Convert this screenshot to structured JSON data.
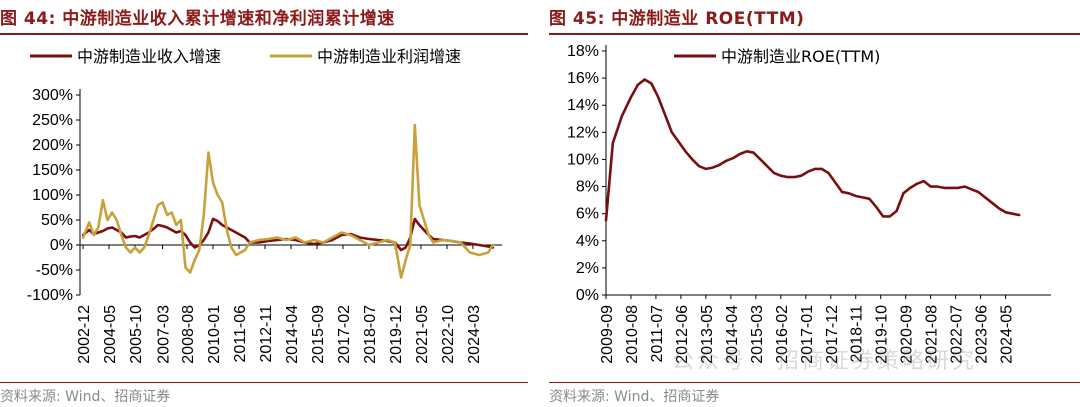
{
  "left_panel": {
    "title": "图 44:  中游制造业收入累计增速和净利润累计增速",
    "source": "资料来源:  Wind、招商证券"
  },
  "right_panel": {
    "title": "图 45:  中游制造业 ROE(TTM)",
    "source": "资料来源:  Wind、招商证券"
  },
  "watermark": "公众号 · 招商证券策略研究",
  "colors": {
    "title": "#8B1A1A",
    "series_dark": "#7B0E0E",
    "series_gold": "#C8A13A"
  },
  "chart_data": [
    {
      "type": "line",
      "title": "中游制造业收入累计增速和净利润累计增速",
      "ylim": [
        -100,
        300
      ],
      "yticks": [
        -100,
        -50,
        0,
        50,
        100,
        150,
        200,
        250,
        300
      ],
      "ytick_labels": [
        "-100%",
        "-50%",
        "0%",
        "50%",
        "100%",
        "150%",
        "200%",
        "250%",
        "300%"
      ],
      "xlim": [
        2002.75,
        2025.75
      ],
      "xticks": [
        2002.917,
        2004.333,
        2005.75,
        2007.25,
        2008.583,
        2010.0,
        2011.417,
        2012.833,
        2014.25,
        2015.667,
        2017.083,
        2018.5,
        2019.917,
        2021.333,
        2022.75,
        2024.167
      ],
      "xtick_labels": [
        "2002-12",
        "2004-05",
        "2005-10",
        "2007-03",
        "2008-08",
        "2010-01",
        "2011-06",
        "2012-11",
        "2014-04",
        "2015-09",
        "2017-02",
        "2018-07",
        "2019-12",
        "2021-05",
        "2022-10",
        "2024-03"
      ],
      "legend": "top-left",
      "series": [
        {
          "name": "中游制造业收入增速",
          "color": "#7B0E0E",
          "x": [
            2002.917,
            2003.25,
            2003.5,
            2003.75,
            2004.0,
            2004.25,
            2004.5,
            2004.75,
            2005.0,
            2005.25,
            2005.5,
            2005.75,
            2006.0,
            2006.25,
            2006.5,
            2006.75,
            2007.0,
            2007.25,
            2007.5,
            2007.75,
            2008.0,
            2008.25,
            2008.5,
            2008.75,
            2009.0,
            2009.25,
            2009.5,
            2009.75,
            2010.0,
            2010.25,
            2010.5,
            2010.75,
            2011.0,
            2011.25,
            2011.5,
            2011.75,
            2012.0,
            2012.5,
            2013.0,
            2013.5,
            2014.0,
            2014.5,
            2015.0,
            2015.5,
            2016.0,
            2016.5,
            2017.0,
            2017.5,
            2018.0,
            2018.5,
            2019.0,
            2019.5,
            2019.917,
            2020.25,
            2020.5,
            2020.75,
            2021.0,
            2021.25,
            2021.5,
            2021.75,
            2022.0,
            2022.5,
            2023.0,
            2023.5,
            2024.0,
            2024.5,
            2025.0,
            2025.25
          ],
          "values": [
            20,
            30,
            22,
            25,
            28,
            33,
            35,
            30,
            25,
            15,
            17,
            18,
            15,
            20,
            25,
            32,
            40,
            38,
            35,
            30,
            25,
            28,
            20,
            5,
            -5,
            0,
            10,
            25,
            52,
            48,
            40,
            35,
            30,
            25,
            20,
            15,
            5,
            5,
            8,
            10,
            12,
            10,
            5,
            2,
            5,
            10,
            20,
            22,
            15,
            12,
            10,
            8,
            5,
            -10,
            -5,
            15,
            52,
            40,
            30,
            20,
            12,
            10,
            8,
            5,
            3,
            0,
            -3,
            -5
          ]
        },
        {
          "name": "中游制造业利润增速",
          "color": "#C8A13A",
          "x": [
            2002.917,
            2003.25,
            2003.5,
            2003.75,
            2004.0,
            2004.25,
            2004.5,
            2004.75,
            2005.0,
            2005.25,
            2005.5,
            2005.75,
            2006.0,
            2006.25,
            2006.5,
            2006.75,
            2007.0,
            2007.25,
            2007.5,
            2007.75,
            2008.0,
            2008.25,
            2008.5,
            2008.75,
            2009.0,
            2009.25,
            2009.5,
            2009.75,
            2010.0,
            2010.25,
            2010.5,
            2010.75,
            2011.0,
            2011.25,
            2011.5,
            2011.75,
            2012.0,
            2012.5,
            2013.0,
            2013.5,
            2014.0,
            2014.5,
            2015.0,
            2015.5,
            2016.0,
            2016.5,
            2017.0,
            2017.5,
            2018.0,
            2018.5,
            2019.0,
            2019.5,
            2019.917,
            2020.25,
            2020.5,
            2020.75,
            2021.0,
            2021.25,
            2021.5,
            2021.75,
            2022.0,
            2022.5,
            2023.0,
            2023.5,
            2024.0,
            2024.5,
            2025.0,
            2025.25
          ],
          "values": [
            15,
            45,
            20,
            35,
            90,
            50,
            65,
            50,
            20,
            -5,
            -15,
            -5,
            -15,
            -5,
            20,
            50,
            80,
            85,
            60,
            65,
            40,
            50,
            -45,
            -55,
            -30,
            -10,
            60,
            185,
            125,
            100,
            85,
            30,
            -5,
            -20,
            -15,
            -10,
            5,
            10,
            12,
            15,
            10,
            15,
            5,
            10,
            5,
            15,
            25,
            20,
            10,
            0,
            5,
            10,
            5,
            -65,
            -30,
            0,
            240,
            80,
            50,
            20,
            5,
            10,
            8,
            5,
            -15,
            -20,
            -15,
            0
          ]
        }
      ]
    },
    {
      "type": "line",
      "title": "中游制造业 ROE(TTM)",
      "ylim": [
        0,
        18
      ],
      "yticks": [
        0,
        2,
        4,
        6,
        8,
        10,
        12,
        14,
        16,
        18
      ],
      "ytick_labels": [
        "0%",
        "2%",
        "4%",
        "6%",
        "8%",
        "10%",
        "12%",
        "14%",
        "16%",
        "18%"
      ],
      "xlim": [
        2009.667,
        2026.0
      ],
      "xticks": [
        2009.667,
        2010.583,
        2011.5,
        2012.417,
        2013.333,
        2014.25,
        2015.167,
        2016.083,
        2017.0,
        2017.917,
        2018.833,
        2019.75,
        2020.667,
        2021.583,
        2022.5,
        2023.417,
        2024.333
      ],
      "xtick_labels": [
        "2009-09",
        "2010-08",
        "2011-07",
        "2012-06",
        "2013-05",
        "2014-04",
        "2015-03",
        "2016-02",
        "2017-01",
        "2017-12",
        "2018-11",
        "2019-10",
        "2020-09",
        "2021-08",
        "2022-07",
        "2023-06",
        "2024-05"
      ],
      "legend": "top-left",
      "series": [
        {
          "name": "中游制造业ROE(TTM)",
          "color": "#7B0E0E",
          "x": [
            2009.667,
            2009.917,
            2010.25,
            2010.583,
            2010.833,
            2011.083,
            2011.333,
            2011.583,
            2011.833,
            2012.083,
            2012.333,
            2012.583,
            2012.833,
            2013.083,
            2013.333,
            2013.583,
            2013.833,
            2014.083,
            2014.333,
            2014.583,
            2014.833,
            2015.083,
            2015.333,
            2015.583,
            2015.833,
            2016.083,
            2016.333,
            2016.583,
            2016.833,
            2017.083,
            2017.333,
            2017.583,
            2017.833,
            2018.083,
            2018.333,
            2018.583,
            2018.833,
            2019.083,
            2019.333,
            2019.583,
            2019.833,
            2020.083,
            2020.333,
            2020.583,
            2020.833,
            2021.083,
            2021.333,
            2021.583,
            2021.833,
            2022.083,
            2022.333,
            2022.583,
            2022.833,
            2023.083,
            2023.333,
            2023.583,
            2023.833,
            2024.083,
            2024.333,
            2024.583,
            2024.833
          ],
          "values": [
            5.5,
            11.2,
            13.2,
            14.6,
            15.5,
            15.9,
            15.6,
            14.6,
            13.3,
            12.0,
            11.3,
            10.6,
            10.0,
            9.5,
            9.3,
            9.4,
            9.6,
            9.9,
            10.1,
            10.4,
            10.6,
            10.5,
            10.0,
            9.5,
            9.0,
            8.8,
            8.7,
            8.7,
            8.8,
            9.1,
            9.3,
            9.3,
            9.0,
            8.3,
            7.6,
            7.5,
            7.3,
            7.2,
            7.1,
            6.5,
            5.8,
            5.8,
            6.2,
            7.5,
            7.9,
            8.2,
            8.4,
            8.0,
            8.0,
            7.9,
            7.9,
            7.9,
            8.0,
            7.8,
            7.6,
            7.2,
            6.8,
            6.4,
            6.1,
            6.0,
            5.9
          ]
        }
      ]
    }
  ]
}
